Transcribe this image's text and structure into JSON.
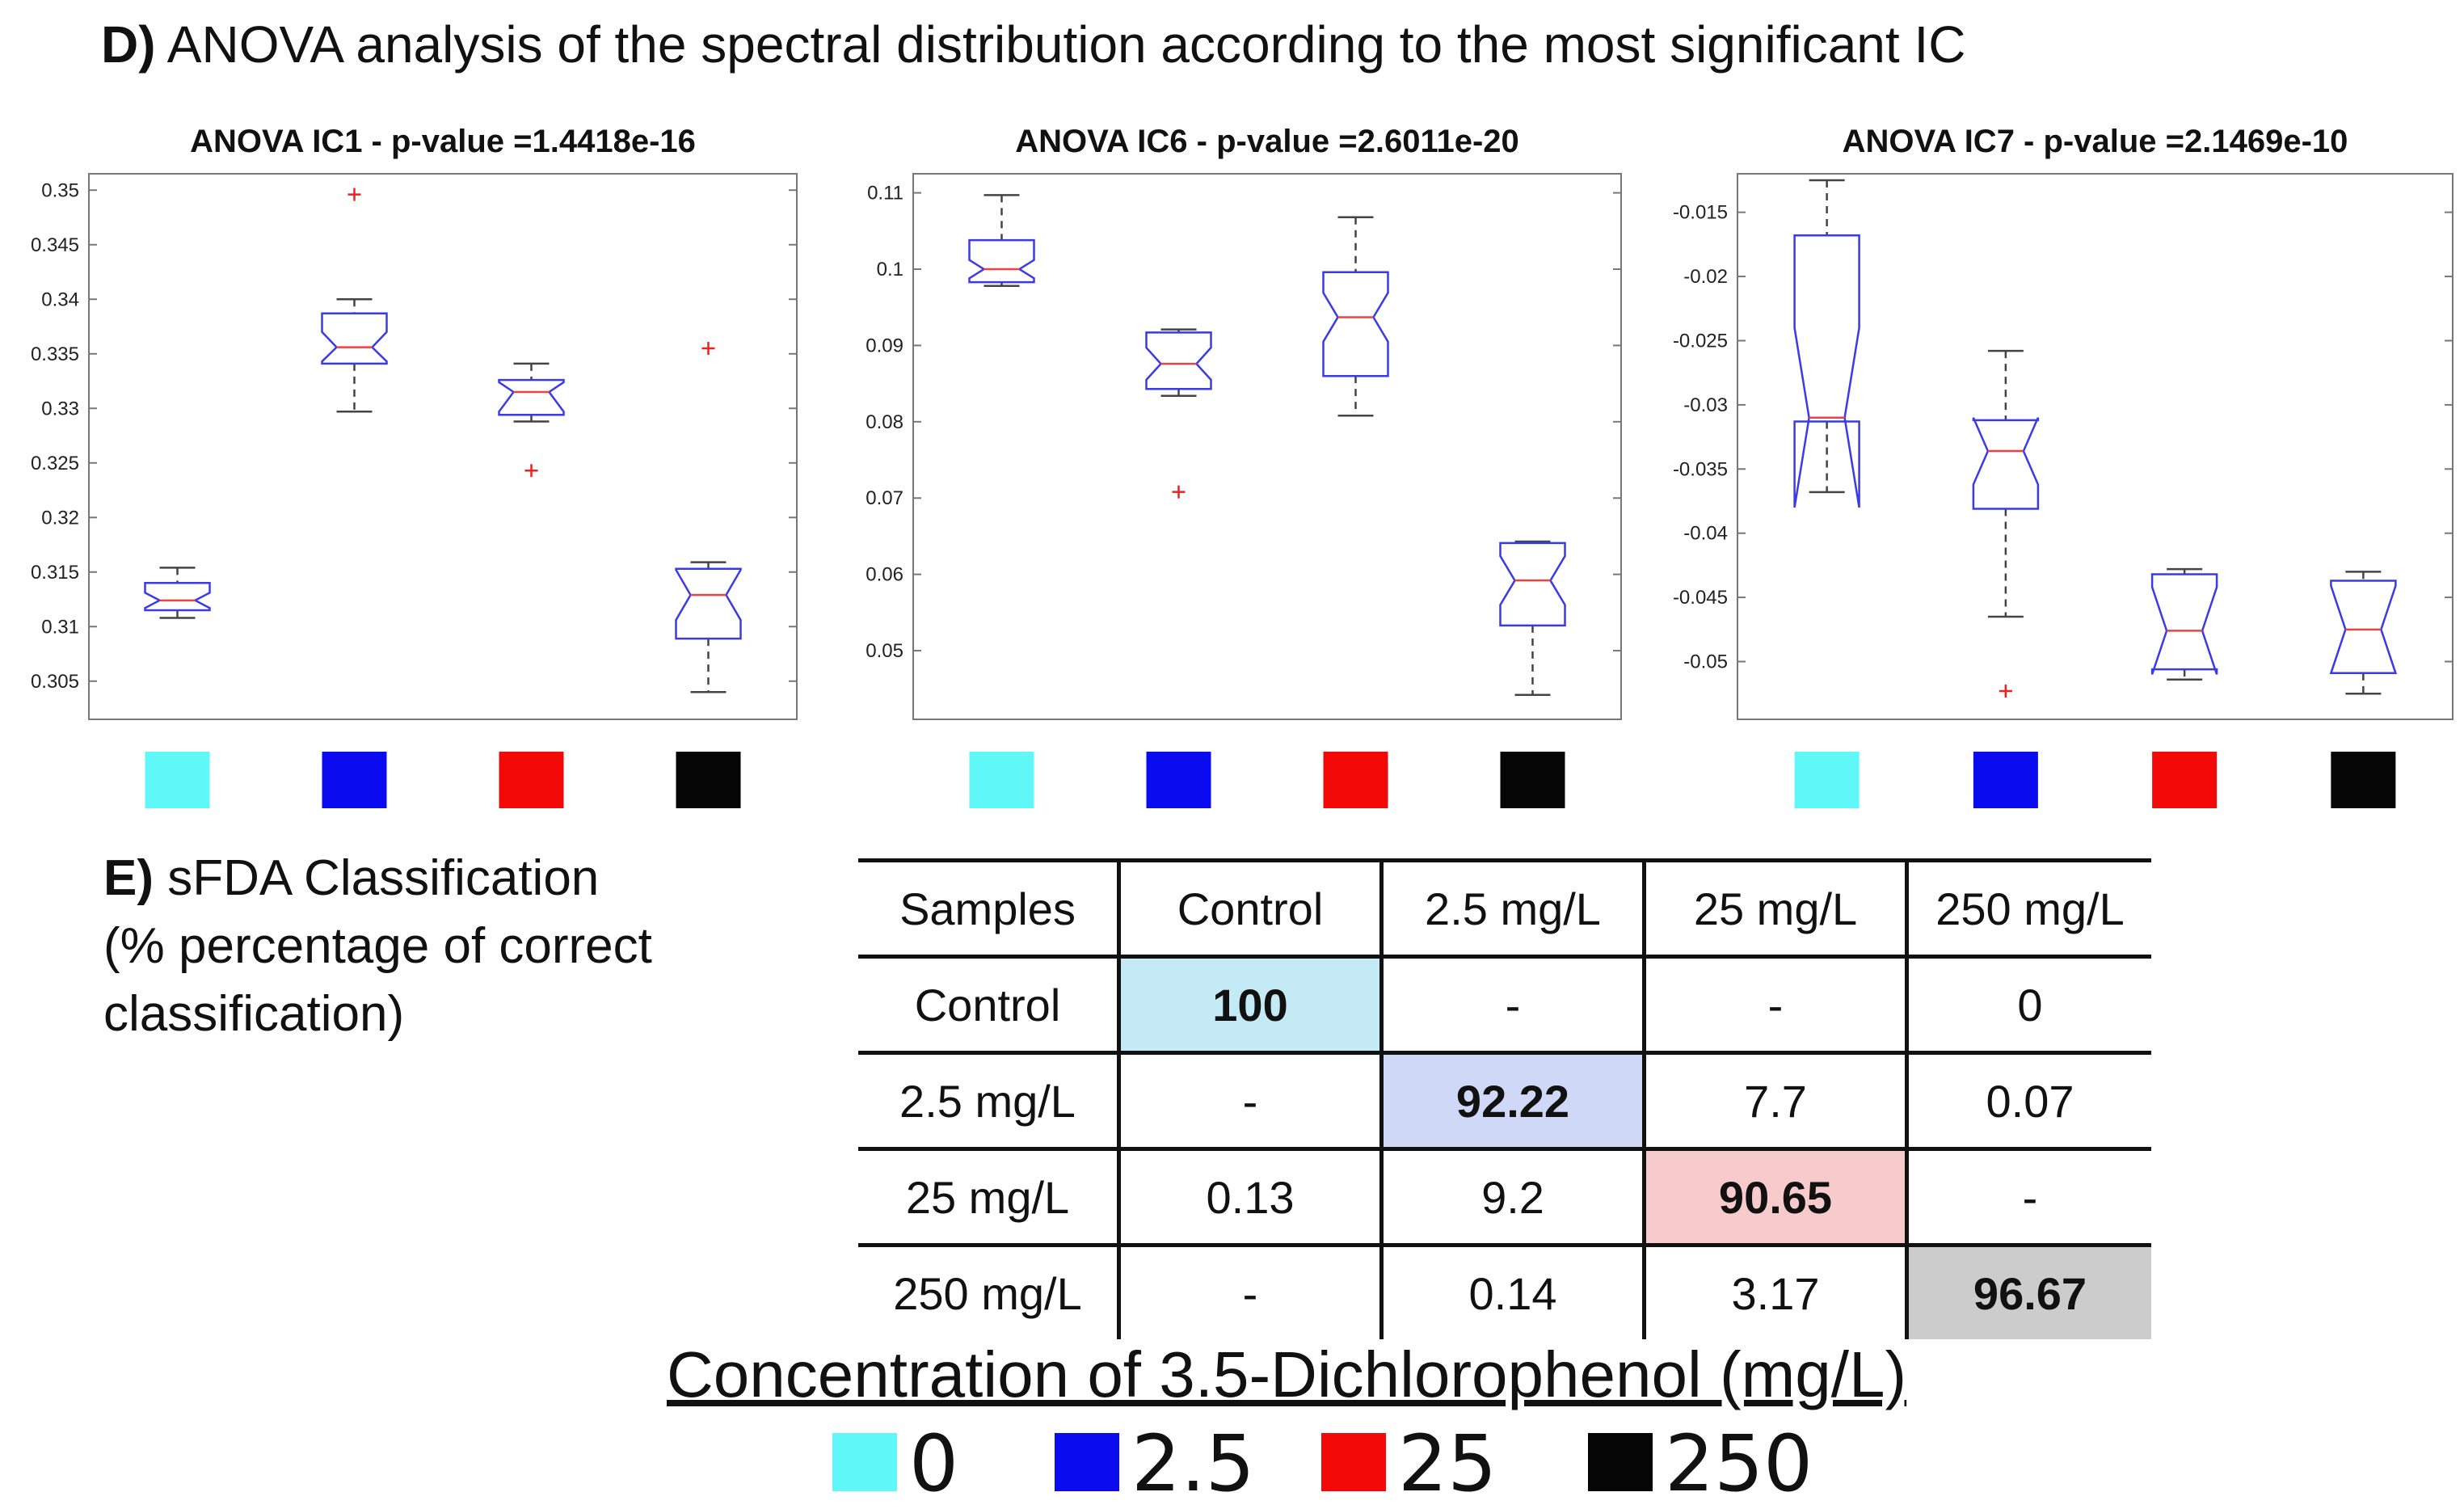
{
  "section_d": {
    "prefix": "D)",
    "text": "ANOVA analysis of the spectral distribution according to the most significant IC"
  },
  "section_e": {
    "prefix": "E)",
    "line1": "sFDA Classification",
    "line2": "(% percentage of correct",
    "line3": "classification)"
  },
  "group_colors": [
    "#5ff7f7",
    "#0b0bef",
    "#f40909",
    "#050505"
  ],
  "chart_data": [
    {
      "type": "boxplot",
      "title": "ANOVA IC1 - p-value =1.4418e-16",
      "ylim": [
        0.3015,
        0.3515
      ],
      "yticks": [
        0.305,
        0.31,
        0.315,
        0.32,
        0.325,
        0.33,
        0.335,
        0.34,
        0.345,
        0.35
      ],
      "ytick_labels": [
        "0.305",
        "0.31",
        "0.315",
        "0.32",
        "0.325",
        "0.33",
        "0.335",
        "0.34",
        "0.345",
        "0.35"
      ],
      "boxes": [
        {
          "min": 0.3108,
          "q1": 0.3115,
          "notch_lo": 0.3117,
          "median": 0.3124,
          "notch_hi": 0.3131,
          "q3": 0.314,
          "max": 0.3154,
          "outliers": []
        },
        {
          "min": 0.3297,
          "q1": 0.3341,
          "notch_lo": 0.3343,
          "median": 0.3356,
          "notch_hi": 0.337,
          "q3": 0.3387,
          "max": 0.34,
          "outliers": [
            0.3496
          ]
        },
        {
          "min": 0.3288,
          "q1": 0.3294,
          "notch_lo": 0.3297,
          "median": 0.3315,
          "notch_hi": 0.3324,
          "q3": 0.3326,
          "max": 0.3341,
          "outliers": [
            0.3243
          ]
        },
        {
          "min": 0.304,
          "q1": 0.3089,
          "notch_lo": 0.3106,
          "median": 0.3129,
          "notch_hi": 0.3152,
          "q3": 0.3153,
          "max": 0.3159,
          "outliers": [
            0.3355
          ]
        }
      ]
    },
    {
      "type": "boxplot",
      "title": "ANOVA IC6 - p-value =2.6011e-20",
      "ylim": [
        0.041,
        0.1125
      ],
      "yticks": [
        0.05,
        0.06,
        0.07,
        0.08,
        0.09,
        0.1,
        0.11
      ],
      "ytick_labels": [
        "0.05",
        "0.06",
        "0.07",
        "0.08",
        "0.09",
        "0.1",
        "0.11"
      ],
      "boxes": [
        {
          "min": 0.0978,
          "q1": 0.0983,
          "notch_lo": 0.0988,
          "median": 0.1,
          "notch_hi": 0.1012,
          "q3": 0.1038,
          "max": 0.1097,
          "outliers": []
        },
        {
          "min": 0.0834,
          "q1": 0.0843,
          "notch_lo": 0.0855,
          "median": 0.0876,
          "notch_hi": 0.0897,
          "q3": 0.0917,
          "max": 0.0921,
          "outliers": [
            0.0708
          ]
        },
        {
          "min": 0.0808,
          "q1": 0.086,
          "notch_lo": 0.0905,
          "median": 0.0937,
          "notch_hi": 0.0969,
          "q3": 0.0996,
          "max": 0.1068,
          "outliers": []
        },
        {
          "min": 0.0442,
          "q1": 0.0533,
          "notch_lo": 0.056,
          "median": 0.0592,
          "notch_hi": 0.0624,
          "q3": 0.0641,
          "max": 0.0643,
          "outliers": []
        }
      ]
    },
    {
      "type": "boxplot",
      "title": "ANOVA IC7 - p-value =2.1469e-10",
      "ylim": [
        -0.0545,
        -0.012
      ],
      "yticks": [
        -0.05,
        -0.045,
        -0.04,
        -0.035,
        -0.03,
        -0.025,
        -0.02,
        -0.015
      ],
      "ytick_labels": [
        "-0.05",
        "-0.045",
        "-0.04",
        "-0.035",
        "-0.03",
        "-0.025",
        "-0.02",
        "-0.015"
      ],
      "boxes": [
        {
          "min": -0.0368,
          "q1": -0.0313,
          "notch_lo": -0.038,
          "median": -0.031,
          "notch_hi": -0.024,
          "q3": -0.0168,
          "max": -0.0125,
          "outliers": []
        },
        {
          "min": -0.0465,
          "q1": -0.0381,
          "notch_lo": -0.0362,
          "median": -0.0336,
          "notch_hi": -0.031,
          "q3": -0.0312,
          "max": -0.0258,
          "outliers": [
            -0.0523
          ]
        },
        {
          "min": -0.0514,
          "q1": -0.0506,
          "notch_lo": -0.051,
          "median": -0.0476,
          "notch_hi": -0.0442,
          "q3": -0.0432,
          "max": -0.0428,
          "outliers": []
        },
        {
          "min": -0.0525,
          "q1": -0.0509,
          "notch_lo": -0.0509,
          "median": -0.0475,
          "notch_hi": -0.0441,
          "q3": -0.0437,
          "max": -0.043,
          "outliers": []
        }
      ]
    }
  ],
  "table": {
    "header": [
      "Samples",
      "Control",
      "2.5 mg/L",
      "25 mg/L",
      "250 mg/L"
    ],
    "rows": [
      {
        "label": "Control",
        "cells": [
          "100",
          "-",
          "-",
          "0"
        ]
      },
      {
        "label": "2.5 mg/L",
        "cells": [
          "-",
          "92.22",
          "7.7",
          "0.07"
        ]
      },
      {
        "label": "25 mg/L",
        "cells": [
          "0.13",
          "9.2",
          "90.65",
          "-"
        ]
      },
      {
        "label": "250 mg/L",
        "cells": [
          "-",
          "0.14",
          "3.17",
          "96.67"
        ]
      }
    ],
    "highlight_colors": [
      "#c4eaf5",
      "#cfd9f7",
      "#f7cbcb",
      "#cccccc"
    ]
  },
  "legend": {
    "title": "Concentration of 3.5-Dichlorophenol (mg/L)",
    "items": [
      {
        "label": "0",
        "color": "#5ff7f7"
      },
      {
        "label": "2.5",
        "color": "#0b0bef"
      },
      {
        "label": "25",
        "color": "#f40909"
      },
      {
        "label": "250",
        "color": "#050505"
      }
    ]
  }
}
